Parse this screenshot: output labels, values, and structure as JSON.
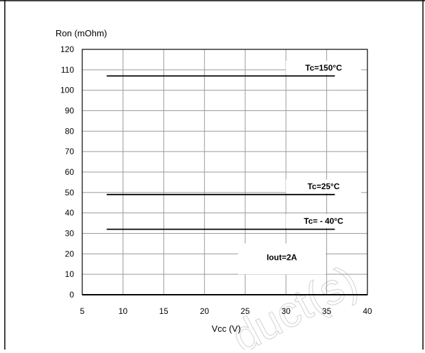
{
  "chart_data": {
    "type": "line",
    "title": "",
    "ylabel": "Ron (mOhm)",
    "xlabel": "Vcc (V)",
    "xlim": [
      5,
      40
    ],
    "ylim": [
      0,
      120
    ],
    "x_ticks": [
      5,
      10,
      15,
      20,
      25,
      30,
      35,
      40
    ],
    "y_ticks": [
      0,
      10,
      20,
      30,
      40,
      50,
      60,
      70,
      80,
      90,
      100,
      110,
      120
    ],
    "grid": true,
    "series": [
      {
        "name": "Tc=150°C",
        "x": [
          8,
          36
        ],
        "y": [
          107,
          107
        ],
        "color": "#000000"
      },
      {
        "name": "Tc=25°C",
        "x": [
          8,
          36
        ],
        "y": [
          49,
          49
        ],
        "color": "#000000"
      },
      {
        "name": "Tc= - 40°C",
        "x": [
          8,
          36
        ],
        "y": [
          32,
          32
        ],
        "color": "#000000"
      }
    ],
    "annotations": [
      {
        "text": "Iout=2A",
        "x": 30,
        "y": 15
      }
    ]
  },
  "watermark": {
    "text": "duct(s)",
    "color": "#d8d8d8"
  }
}
